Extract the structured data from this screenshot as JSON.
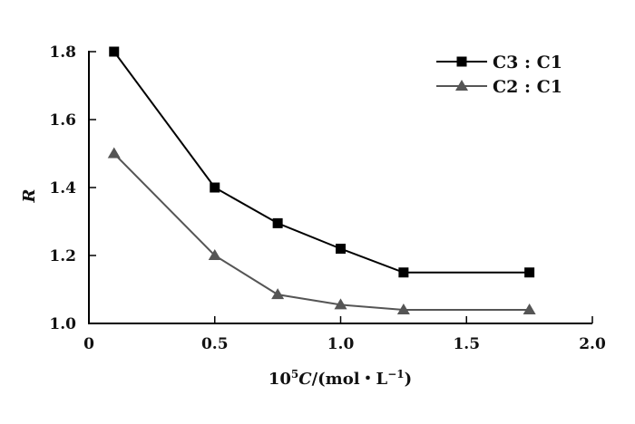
{
  "chart_data": {
    "type": "line",
    "title": "",
    "xlabel_parts": {
      "prefix": "10",
      "sup": "5",
      "var": "C",
      "unit": "/(mol・L",
      "unit_sup": "−1",
      "close": ")"
    },
    "ylabel": "R",
    "xlim": [
      0,
      2.0
    ],
    "ylim": [
      1.0,
      1.8
    ],
    "xticks": [
      "0",
      "0.5",
      "1.0",
      "1.5",
      "2.0"
    ],
    "yticks": [
      "1.0",
      "1.2",
      "1.4",
      "1.6",
      "1.8"
    ],
    "grid": false,
    "legend_position": "top-right",
    "x": [
      0.1,
      0.5,
      0.75,
      1.0,
      1.25,
      1.75
    ],
    "series": [
      {
        "name": "C3 : C1",
        "marker": "square",
        "color": "#000000",
        "values": [
          1.8,
          1.4,
          1.295,
          1.22,
          1.15,
          1.15
        ]
      },
      {
        "name": "C2 : C1",
        "marker": "triangle",
        "color": "#555555",
        "values": [
          1.5,
          1.2,
          1.085,
          1.055,
          1.04,
          1.04
        ]
      }
    ]
  }
}
